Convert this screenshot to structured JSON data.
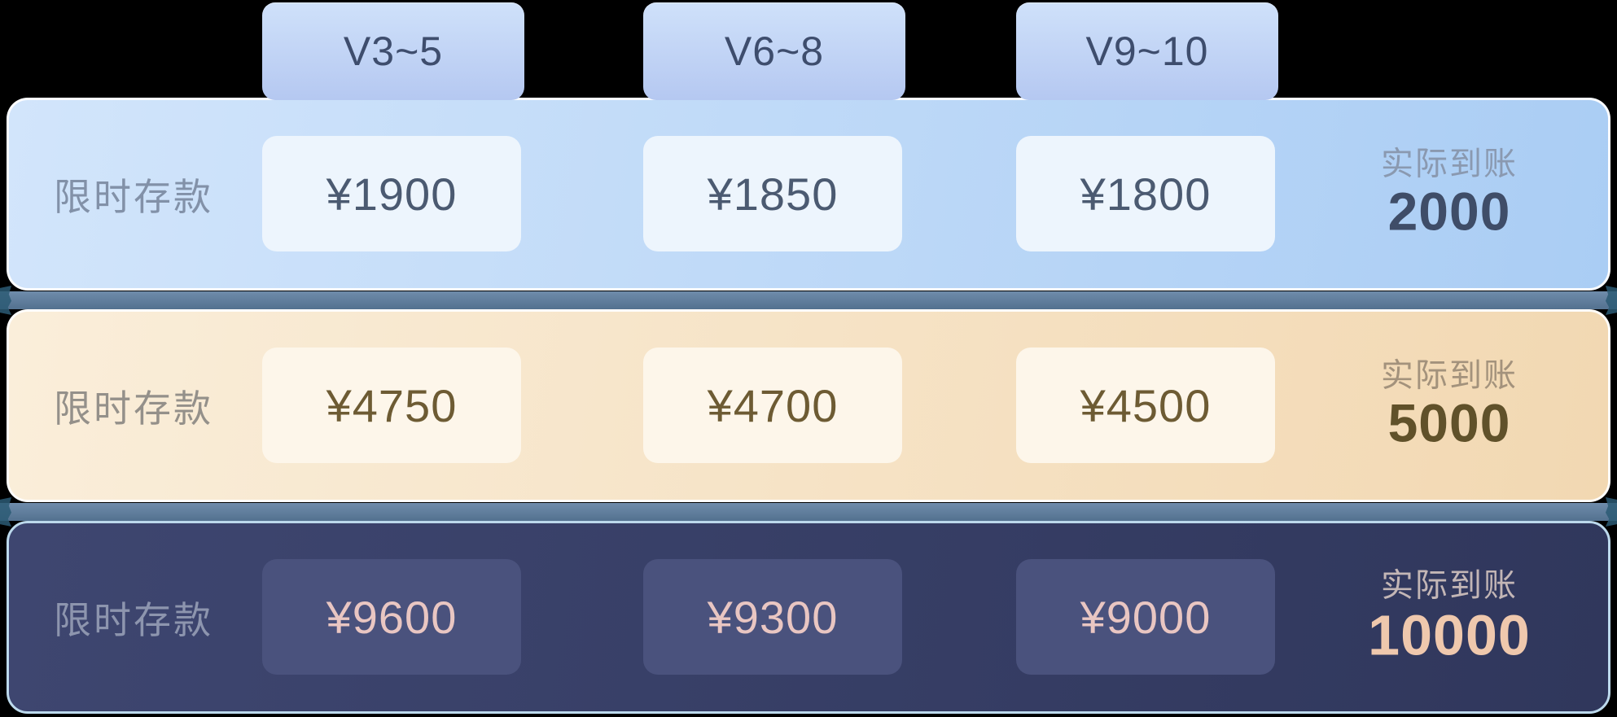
{
  "tabs": [
    {
      "label": "V3~5"
    },
    {
      "label": "V6~8"
    },
    {
      "label": "V9~10"
    }
  ],
  "rows": [
    {
      "label": "限时存款",
      "prices": [
        "¥1900",
        "¥1850",
        "¥1800"
      ],
      "received_label": "实际到账",
      "received_value": "2000"
    },
    {
      "label": "限时存款",
      "prices": [
        "¥4750",
        "¥4700",
        "¥4500"
      ],
      "received_label": "实际到账",
      "received_value": "5000"
    },
    {
      "label": "限时存款",
      "prices": [
        "¥9600",
        "¥9300",
        "¥9000"
      ],
      "received_label": "实际到账",
      "received_value": "10000"
    }
  ],
  "colors": {
    "tab-bg-top": "#cfe1fa",
    "tab-bg-bottom": "#b5c8f1",
    "tab-text": "#3e4d6d",
    "divider-top": "#6f8cab",
    "divider-bottom": "#53718f",
    "divider-ornament": "#2c5a74",
    "row1-bg-start": "#d2e5fb",
    "row1-bg-end": "#aacdf4",
    "row1-card": "#edf5fd",
    "row1-label": "#8291a8",
    "row1-price": "#4b5a71",
    "row1-received-label": "#8a99b0",
    "row1-received-value": "#3f4d68",
    "row2-bg-start": "#faeeda",
    "row2-bg-end": "#f2d8b2",
    "row2-card": "#fdf6ea",
    "row2-label": "#94908a",
    "row2-price": "#6d5b33",
    "row2-received-label": "#a3927c",
    "row2-received-value": "#60512a",
    "row3-bg-start": "#3e4670",
    "row3-bg-end": "#30375c",
    "row3-border": "#bcd9ec",
    "row3-card": "#4a527d",
    "row3-label": "#8d95ae",
    "row3-price": "#e9c6c2",
    "row3-received-label": "#c3b6b6",
    "row3-received-value": "#efc8ad"
  }
}
